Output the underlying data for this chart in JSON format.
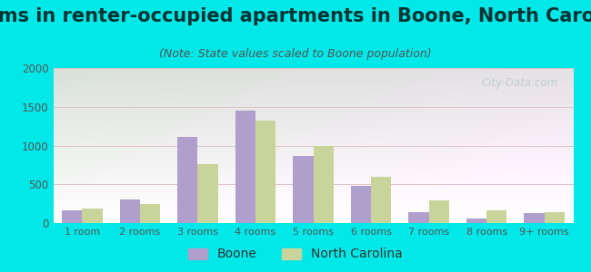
{
  "title": "Rooms in renter-occupied apartments in Boone, North Carolina",
  "subtitle": "(Note: State values scaled to Boone population)",
  "categories": [
    "1 room",
    "2 rooms",
    "3 rooms",
    "4 rooms",
    "5 rooms",
    "6 rooms",
    "7 rooms",
    "8 rooms",
    "9+ rooms"
  ],
  "boone_values": [
    160,
    305,
    1115,
    1455,
    870,
    475,
    140,
    55,
    130
  ],
  "nc_values": [
    190,
    250,
    760,
    1325,
    990,
    595,
    295,
    165,
    145
  ],
  "boone_color": "#b09fcc",
  "nc_color": "#c8d49a",
  "background_outer": "#00e8e8",
  "ylim": [
    0,
    2000
  ],
  "yticks": [
    0,
    500,
    1000,
    1500,
    2000
  ],
  "title_fontsize": 15,
  "subtitle_fontsize": 9,
  "legend_labels": [
    "Boone",
    "North Carolina"
  ],
  "watermark": "City-Data.com",
  "title_color": "#003333",
  "subtitle_color": "#555555",
  "tick_color": "#555555"
}
